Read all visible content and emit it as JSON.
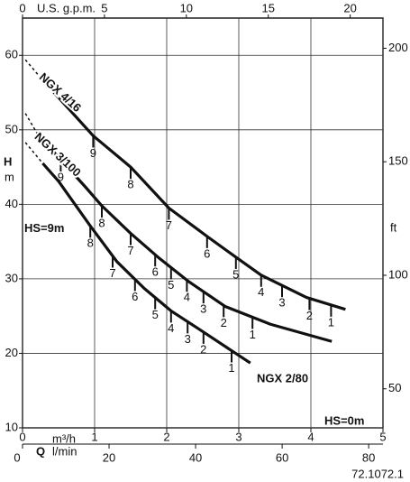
{
  "chart_data": {
    "type": "pump-curves",
    "top_axis_label": "U.S. g.p.m.",
    "top_xlim": [
      0,
      22
    ],
    "top_xticks": [
      0,
      5,
      10,
      15,
      20
    ],
    "xlabel": "Q",
    "x_unit": "m³/h",
    "xlim": [
      0,
      5
    ],
    "xticks": [
      0,
      1,
      2,
      3,
      4,
      5
    ],
    "x2_unit": "l/min",
    "x2lim": [
      0,
      83.3
    ],
    "x2ticks": [
      0,
      20,
      40,
      60,
      80
    ],
    "ylabel": "H",
    "y_unit": "m",
    "ylim": [
      10,
      65
    ],
    "yticks": [
      10,
      20,
      30,
      40,
      50,
      60
    ],
    "y2_unit": "ft",
    "y2lim": [
      32.8,
      213.3
    ],
    "y2ticks": [
      50,
      100,
      150,
      200
    ],
    "grid": true,
    "series": [
      {
        "name": "NGX 4/16",
        "color": "#111111",
        "x": [
          0.25,
          0.98,
          1.5,
          2.03,
          2.56,
          2.96,
          3.31,
          3.94,
          4.48
        ],
        "values": [
          57,
          49.2,
          45,
          39.5,
          35.7,
          32.9,
          30.5,
          27.5,
          25.9
        ],
        "dashed_x": [
          0.04,
          0.25
        ],
        "dashed_values": [
          59.4,
          57
        ],
        "markers": [
          {
            "label": 9,
            "x": 0.98
          },
          {
            "label": 8,
            "x": 1.5
          },
          {
            "label": 7,
            "x": 2.03
          },
          {
            "label": 6,
            "x": 2.56
          },
          {
            "label": 5,
            "x": 2.96
          },
          {
            "label": 4,
            "x": 3.31
          },
          {
            "label": 3,
            "x": 3.6
          },
          {
            "label": 2,
            "x": 3.98
          },
          {
            "label": 1,
            "x": 4.28
          }
        ]
      },
      {
        "name": "NGX 3/100",
        "color": "#111111",
        "x": [
          0.21,
          0.875,
          1.1,
          1.5,
          1.88,
          2.31,
          2.81,
          3.44,
          4.29
        ],
        "values": [
          49.4,
          42.3,
          39.8,
          36.1,
          32.9,
          29.6,
          26.3,
          23.9,
          21.6
        ],
        "dashed_x": [
          0.04,
          0.21
        ],
        "dashed_values": [
          52.2,
          49.4
        ],
        "markers": [
          {
            "label": 9,
            "x": 0.53
          },
          {
            "label": 8,
            "x": 1.1
          },
          {
            "label": 7,
            "x": 1.5
          },
          {
            "label": 6,
            "x": 1.84
          },
          {
            "label": 5,
            "x": 2.06
          },
          {
            "label": 4,
            "x": 2.28
          },
          {
            "label": 3,
            "x": 2.51
          },
          {
            "label": 2,
            "x": 2.79
          },
          {
            "label": 1,
            "x": 3.19
          }
        ]
      },
      {
        "name": "NGX 2/80",
        "color": "#111111",
        "x": [
          0.28,
          0.5,
          0.94,
          1.31,
          1.69,
          2.06,
          2.44,
          3.16
        ],
        "values": [
          45.5,
          43.1,
          37.1,
          32.3,
          28.7,
          25.7,
          23.3,
          18.7
        ],
        "dashed_x": [
          0.04,
          0.28
        ],
        "dashed_values": [
          48.3,
          45.5
        ],
        "markers": [
          {
            "label": 8,
            "x": 0.94
          },
          {
            "label": 7,
            "x": 1.25
          },
          {
            "label": 6,
            "x": 1.56
          },
          {
            "label": 5,
            "x": 1.84
          },
          {
            "label": 4,
            "x": 2.06
          },
          {
            "label": 3,
            "x": 2.29
          },
          {
            "label": 2,
            "x": 2.51
          },
          {
            "label": 1,
            "x": 2.9
          }
        ]
      }
    ],
    "annotations": [
      {
        "text": "HS=9m",
        "value": 36.7
      },
      {
        "text": "HS=0m"
      }
    ],
    "footnote": "72.1072.1"
  }
}
